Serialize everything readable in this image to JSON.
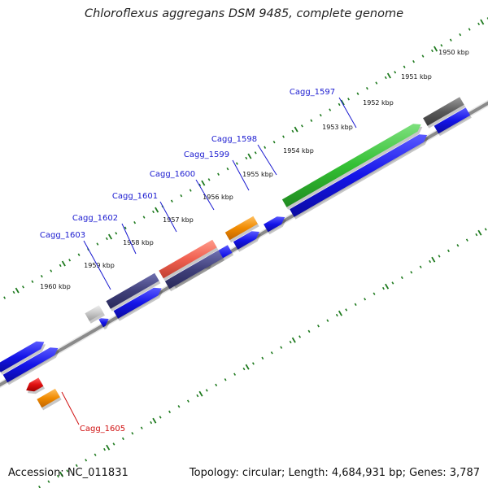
{
  "title": "Chloroflexus aggregans DSM 9485, complete genome",
  "footer": {
    "accession": "Accession: NC_011831",
    "topology": "Topology: circular; Length: 4,684,931 bp; Genes: 3,787"
  },
  "colors": {
    "cds": "#1212e6",
    "backbone": "#8a8a8a",
    "tick": "#1e7a1e",
    "label_blue": "#1a1ad0",
    "label_red": "#d01010"
  },
  "ticks": [
    {
      "label": "1950 kbp"
    },
    {
      "label": "1951 kbp"
    },
    {
      "label": "1952 kbp"
    },
    {
      "label": "1953 kbp"
    },
    {
      "label": "1954 kbp"
    },
    {
      "label": "1955 kbp"
    },
    {
      "label": "1956 kbp"
    },
    {
      "label": "1957 kbp"
    },
    {
      "label": "1958 kbp"
    },
    {
      "label": "1959 kbp"
    },
    {
      "label": "1960 kbp"
    }
  ],
  "gene_labels": [
    {
      "id": "Cagg_1597",
      "color": "blue"
    },
    {
      "id": "Cagg_1598",
      "color": "blue"
    },
    {
      "id": "Cagg_1599",
      "color": "blue"
    },
    {
      "id": "Cagg_1600",
      "color": "blue"
    },
    {
      "id": "Cagg_1601",
      "color": "blue"
    },
    {
      "id": "Cagg_1602",
      "color": "blue"
    },
    {
      "id": "Cagg_1603",
      "color": "blue"
    },
    {
      "id": "Cagg_1605",
      "color": "red"
    }
  ]
}
